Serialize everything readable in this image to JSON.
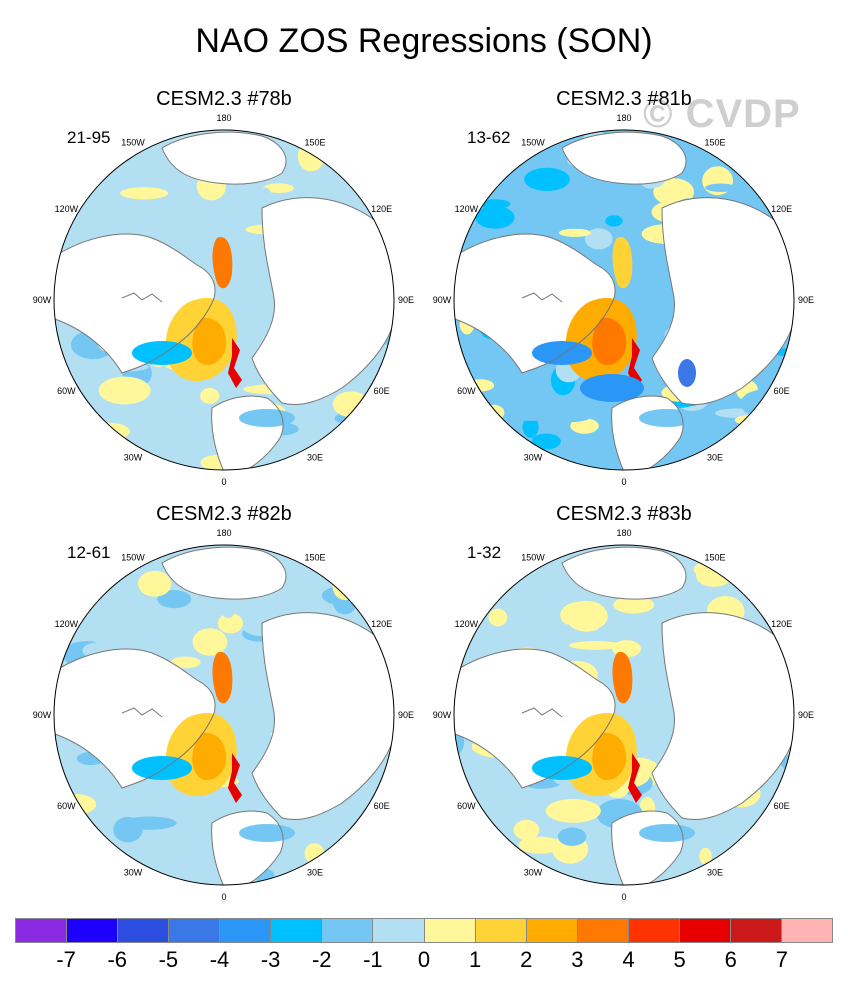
{
  "title": "NAO ZOS Regressions (SON)",
  "watermark": "© CVDP",
  "panels": [
    {
      "title": "CESM2.3 #78b",
      "stat": "21-95"
    },
    {
      "title": "CESM2.3 #81b",
      "stat": "13-62"
    },
    {
      "title": "CESM2.3 #82b",
      "stat": "12-61"
    },
    {
      "title": "CESM2.3 #83b",
      "stat": "1-32"
    }
  ],
  "lon_labels": [
    "180",
    "150E",
    "120E",
    "90E",
    "60E",
    "30E",
    "0",
    "30W",
    "60W",
    "90W",
    "120W",
    "150W"
  ],
  "colorbar": {
    "colors": [
      "#8a2be2",
      "#1e00ff",
      "#2b4de0",
      "#3a78e8",
      "#2a96f5",
      "#00c0ff",
      "#74c7f2",
      "#b3dff2",
      "#fff79a",
      "#ffd335",
      "#ffac00",
      "#ff7800",
      "#ff3300",
      "#e60000",
      "#cc1a1a",
      "#ffb3b3"
    ],
    "labels": [
      "-7",
      "-6",
      "-5",
      "-4",
      "-3",
      "-2",
      "-1",
      "0",
      "1",
      "2",
      "3",
      "4",
      "5",
      "6",
      "7"
    ]
  }
}
